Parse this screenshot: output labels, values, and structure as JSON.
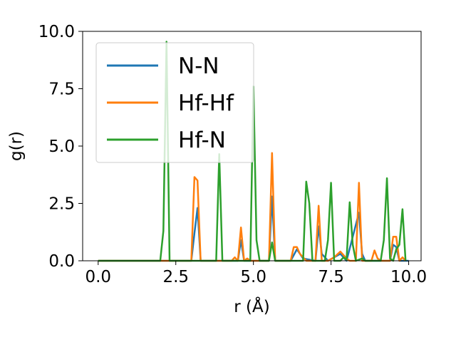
{
  "chart_data": {
    "type": "line",
    "xlabel": "r (Å)",
    "ylabel": "g(r)",
    "xlim": [
      -0.5,
      10.4
    ],
    "ylim": [
      0,
      10
    ],
    "xticks": [
      0.0,
      2.5,
      5.0,
      7.5,
      10.0
    ],
    "xtick_labels": [
      "0.0",
      "2.5",
      "5.0",
      "7.5",
      "10.0"
    ],
    "yticks": [
      0.0,
      2.5,
      5.0,
      7.5,
      10.0
    ],
    "ytick_labels": [
      "0.0",
      "2.5",
      "5.0",
      "7.5",
      "10.0"
    ],
    "grid": false,
    "legend_position": "upper-left",
    "series": [
      {
        "name": "N-N",
        "color": "#1f77b4",
        "points": [
          [
            0,
            0
          ],
          [
            3.0,
            0
          ],
          [
            3.1,
            1.2
          ],
          [
            3.2,
            2.3
          ],
          [
            3.3,
            0
          ],
          [
            4.5,
            0
          ],
          [
            4.6,
            0.9
          ],
          [
            4.7,
            0
          ],
          [
            5.5,
            0
          ],
          [
            5.6,
            2.8
          ],
          [
            5.7,
            0
          ],
          [
            6.2,
            0
          ],
          [
            6.4,
            0.5
          ],
          [
            6.6,
            0.1
          ],
          [
            7.0,
            0
          ],
          [
            7.1,
            1.5
          ],
          [
            7.2,
            0.3
          ],
          [
            7.4,
            0
          ],
          [
            7.8,
            0.3
          ],
          [
            8.0,
            0
          ],
          [
            8.4,
            2.1
          ],
          [
            8.5,
            0.3
          ],
          [
            8.6,
            0
          ],
          [
            9.4,
            0
          ],
          [
            9.5,
            0.7
          ],
          [
            9.6,
            0.6
          ],
          [
            9.7,
            0
          ],
          [
            10.0,
            0
          ]
        ]
      },
      {
        "name": "Hf-Hf",
        "color": "#ff7f0e",
        "points": [
          [
            0,
            0
          ],
          [
            3.0,
            0
          ],
          [
            3.1,
            3.65
          ],
          [
            3.2,
            3.5
          ],
          [
            3.3,
            0
          ],
          [
            4.3,
            0
          ],
          [
            4.4,
            0.15
          ],
          [
            4.5,
            0
          ],
          [
            4.6,
            1.45
          ],
          [
            4.7,
            0
          ],
          [
            4.8,
            0.1
          ],
          [
            4.9,
            0
          ],
          [
            5.5,
            0
          ],
          [
            5.6,
            4.7
          ],
          [
            5.7,
            0
          ],
          [
            6.2,
            0
          ],
          [
            6.3,
            0.6
          ],
          [
            6.4,
            0.6
          ],
          [
            6.5,
            0.3
          ],
          [
            6.7,
            0
          ],
          [
            7.0,
            0
          ],
          [
            7.1,
            2.4
          ],
          [
            7.2,
            0
          ],
          [
            7.4,
            0
          ],
          [
            7.6,
            0.15
          ],
          [
            7.8,
            0.4
          ],
          [
            8.0,
            0.1
          ],
          [
            8.1,
            0
          ],
          [
            8.3,
            0
          ],
          [
            8.4,
            3.4
          ],
          [
            8.5,
            0
          ],
          [
            8.8,
            0
          ],
          [
            8.9,
            0.45
          ],
          [
            9.0,
            0.1
          ],
          [
            9.1,
            0
          ],
          [
            9.4,
            0
          ],
          [
            9.5,
            1.05
          ],
          [
            9.6,
            1.05
          ],
          [
            9.7,
            0
          ],
          [
            9.8,
            0.15
          ],
          [
            9.9,
            0
          ]
        ]
      },
      {
        "name": "Hf-N",
        "color": "#2ca02c",
        "points": [
          [
            0,
            0
          ],
          [
            2.0,
            0
          ],
          [
            2.1,
            1.3
          ],
          [
            2.2,
            9.55
          ],
          [
            2.3,
            0
          ],
          [
            3.8,
            0
          ],
          [
            3.9,
            4.65
          ],
          [
            4.0,
            0
          ],
          [
            4.9,
            0
          ],
          [
            5.0,
            7.6
          ],
          [
            5.1,
            0.9
          ],
          [
            5.2,
            0
          ],
          [
            5.5,
            0
          ],
          [
            5.6,
            0.8
          ],
          [
            5.7,
            0
          ],
          [
            6.6,
            0
          ],
          [
            6.7,
            3.45
          ],
          [
            6.8,
            2.5
          ],
          [
            6.9,
            0
          ],
          [
            7.3,
            0
          ],
          [
            7.4,
            0.9
          ],
          [
            7.5,
            3.4
          ],
          [
            7.6,
            0
          ],
          [
            7.8,
            0
          ],
          [
            7.9,
            0.15
          ],
          [
            8.0,
            0.05
          ],
          [
            8.1,
            2.55
          ],
          [
            8.2,
            0.7
          ],
          [
            8.3,
            0
          ],
          [
            8.5,
            0.1
          ],
          [
            8.6,
            0
          ],
          [
            9.1,
            0
          ],
          [
            9.2,
            0.9
          ],
          [
            9.3,
            3.6
          ],
          [
            9.4,
            0.1
          ],
          [
            9.5,
            0
          ],
          [
            9.6,
            0.5
          ],
          [
            9.7,
            0.7
          ],
          [
            9.8,
            2.25
          ],
          [
            9.9,
            0
          ]
        ]
      }
    ]
  }
}
